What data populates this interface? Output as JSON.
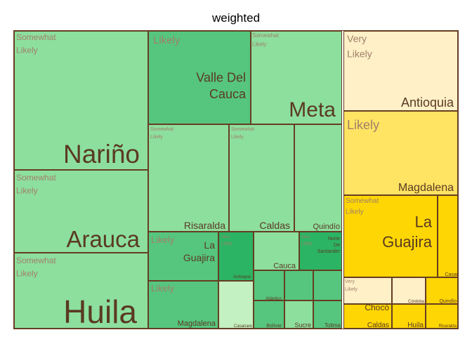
{
  "chart_data": {
    "type": "treemap",
    "title": "weighted",
    "colors": {
      "Somewhat Likely": "#8ddf9e",
      "Likely": "#56c67f",
      "Likely (dark)": "#2bb463",
      "Very Likely": "#c3f1c1",
      "right Very Likely": "#fff0c8",
      "right Likely": "#ffe363",
      "right Somewhat Likely": "#fed603",
      "border": "#663d22",
      "label": "#5a3a22",
      "group label": "#a08068"
    },
    "groups": [
      {
        "label": "Somewhat Likely",
        "children": [
          {
            "name": "Nariño",
            "value": 0.093
          },
          {
            "name": "Arauca",
            "value": 0.058
          },
          {
            "name": "Huila",
            "value": 0.053
          }
        ]
      },
      {
        "label": "Likely",
        "children": [
          {
            "name": "Valle Del Cauca",
            "value": 0.045
          },
          {
            "name": "La Guajira",
            "value": 0.022
          },
          {
            "name": "Magdalena",
            "value": 0.021
          },
          {
            "name": "Norte De Santander",
            "value": 0.006
          },
          {
            "name": "Antioquia",
            "value": 0.01
          }
        ]
      },
      {
        "label": "Somewhat Likely",
        "children": [
          {
            "name": "Meta",
            "value": 0.041
          },
          {
            "name": "Risaralda",
            "value": 0.046
          },
          {
            "name": "Caldas",
            "value": 0.03
          },
          {
            "name": "Quindío",
            "value": 0.028
          },
          {
            "name": "Cauca",
            "value": 0.012
          },
          {
            "name": "Atlántico",
            "value": 0.006
          },
          {
            "name": "Bolívar",
            "value": 0.006
          },
          {
            "name": "Sucre",
            "value": 0.006
          },
          {
            "name": "Tolima",
            "value": 0.006
          }
        ]
      },
      {
        "label": "Very Likely",
        "children": [
          {
            "name": "Casanare",
            "value": 0.014
          }
        ]
      },
      {
        "label": "Very Likely",
        "children": [
          {
            "name": "Antioquia",
            "value": 0.028
          },
          {
            "name": "Chocó",
            "value": 0.009
          },
          {
            "name": "Córdoba",
            "value": 0.005
          }
        ]
      },
      {
        "label": "Likely",
        "children": [
          {
            "name": "Magdalena",
            "value": 0.031
          }
        ]
      },
      {
        "label": "Somewhat Likely",
        "children": [
          {
            "name": "La Guajira",
            "value": 0.035
          },
          {
            "name": "Casanare",
            "value": 0.004
          },
          {
            "name": "Quindío",
            "value": 0.005
          },
          {
            "name": "Caldas",
            "value": 0.005
          },
          {
            "name": "Huila",
            "value": 0.004
          },
          {
            "name": "Risaralda",
            "value": 0.004
          }
        ]
      }
    ]
  }
}
